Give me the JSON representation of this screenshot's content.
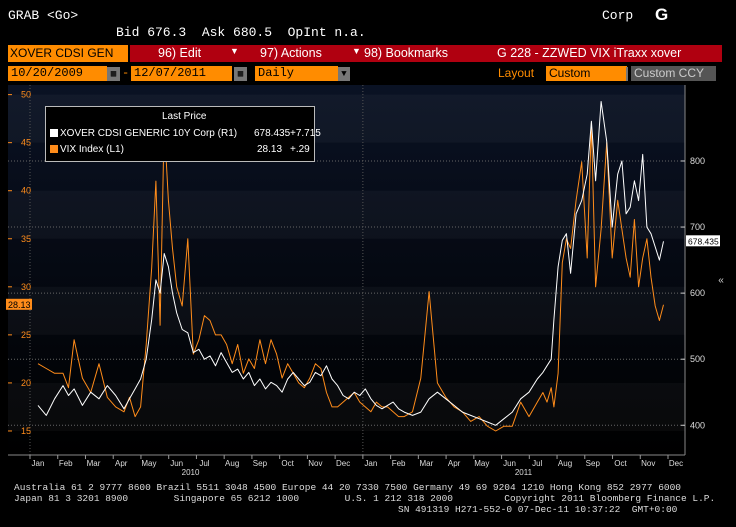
{
  "header": {
    "command": "GRAB <Go>",
    "sector": "Corp",
    "logo": "G",
    "quote": "Bid 676.3  Ask 680.5  OpInt n.a."
  },
  "menu": {
    "security_label": "XOVER CDSI GEN",
    "edit": "96) Edit",
    "actions": "97) Actions",
    "bookmarks": "98) Bookmarks",
    "graph_title": "G 228 - ZZWED VIX iTraxx xover"
  },
  "controls": {
    "start_date": "10/20/2009",
    "end_date": "12/07/2011",
    "period": "Daily",
    "layout_label": "Layout",
    "layout_value": "Custom",
    "currency": "Custom CCY"
  },
  "legend": {
    "title": "Last Price",
    "rows": [
      {
        "name": "XOVER CDSI GENERIC 10Y Corp  (R1)",
        "last": "678.435",
        "chg": "+7.715",
        "color": "#ffffff"
      },
      {
        "name": "VIX Index  (L1)",
        "last": "28.13",
        "chg": "+.29",
        "color": "#ff8c1a"
      }
    ]
  },
  "chart_data": {
    "type": "line",
    "x_ticks": [
      "Jan",
      "Feb",
      "Mar",
      "Apr",
      "May",
      "Jun",
      "Jul",
      "Aug",
      "Sep",
      "Oct",
      "Nov",
      "Dec",
      "Jan",
      "Feb",
      "Mar",
      "Apr",
      "May",
      "Jun",
      "Jul",
      "Aug",
      "Sep",
      "Oct",
      "Nov",
      "Dec"
    ],
    "year_labels": [
      "2010",
      "2011"
    ],
    "left_axis": {
      "ticks": [
        15,
        20,
        25,
        30,
        35,
        40,
        45,
        50
      ],
      "ylim": [
        12.5,
        51
      ],
      "last_label": "28.13"
    },
    "right_axis": {
      "ticks": [
        400,
        500,
        600,
        700,
        800
      ],
      "ylim": [
        355,
        915
      ],
      "last_label": "678.435"
    },
    "grid": true,
    "series": [
      {
        "name": "VIX Index (L1)",
        "axis": "left",
        "color": "#ff8c1a",
        "x": [
          0,
          0.3,
          0.6,
          0.9,
          1.1,
          1.3,
          1.6,
          1.9,
          2.2,
          2.5,
          2.8,
          3.1,
          3.3,
          3.5,
          3.7,
          3.9,
          4.1,
          4.25,
          4.4,
          4.55,
          4.7,
          4.85,
          5.0,
          5.2,
          5.4,
          5.6,
          5.8,
          6.0,
          6.2,
          6.4,
          6.6,
          6.8,
          7.0,
          7.2,
          7.4,
          7.6,
          7.8,
          8.0,
          8.2,
          8.4,
          8.6,
          8.8,
          9.0,
          9.2,
          9.4,
          9.6,
          9.8,
          10.0,
          10.2,
          10.4,
          10.6,
          10.8,
          11.0,
          11.2,
          11.4,
          11.6,
          11.8,
          12.0,
          12.2,
          12.4,
          12.6,
          12.8,
          13.0,
          13.2,
          13.5,
          13.8,
          14.1,
          14.4,
          14.7,
          15.0,
          15.3,
          15.6,
          15.9,
          16.2,
          16.5,
          16.8,
          17.1,
          17.4,
          17.7,
          18.0,
          18.2,
          18.35,
          18.5,
          18.6,
          18.75,
          18.9,
          19.05,
          19.2,
          19.4,
          19.6,
          19.8,
          19.95,
          20.1,
          20.3,
          20.5,
          20.7,
          20.9,
          21.05,
          21.2,
          21.35,
          21.5,
          21.65,
          21.8,
          21.95,
          22.1,
          22.25,
          22.4,
          22.55
        ],
        "y": [
          22,
          21.5,
          21,
          21,
          19.5,
          24.5,
          20.5,
          19,
          22,
          18.5,
          17.5,
          17,
          18.5,
          16.5,
          17.5,
          24,
          32,
          41,
          26,
          47,
          39,
          34,
          30,
          28,
          35,
          23,
          24.5,
          27,
          26.5,
          25,
          25,
          24,
          22,
          24,
          21,
          22.5,
          21.5,
          24.5,
          22,
          24.5,
          23,
          20.5,
          22,
          21,
          20,
          19.5,
          20.5,
          22,
          21.5,
          19,
          17.5,
          17.5,
          18,
          18.5,
          19,
          18,
          17.5,
          17,
          18,
          17.5,
          17.5,
          17,
          16.5,
          16.5,
          17,
          20.5,
          29.5,
          20,
          18.5,
          17.5,
          17,
          16,
          16.5,
          15.5,
          15,
          15.5,
          15.5,
          18,
          16.5,
          18,
          19,
          18,
          19.5,
          17.5,
          21,
          32.5,
          35,
          34,
          39,
          43,
          33,
          47,
          30,
          36,
          45,
          33,
          39,
          36,
          33,
          31,
          37,
          30,
          33,
          35,
          31,
          28,
          26.5,
          28.13
        ]
      },
      {
        "name": "XOVER CDSI GENERIC 10Y Corp (R1)",
        "axis": "right",
        "color": "#ffffff",
        "x": [
          0,
          0.3,
          0.6,
          0.9,
          1.1,
          1.3,
          1.6,
          1.9,
          2.2,
          2.5,
          2.8,
          3.1,
          3.3,
          3.5,
          3.7,
          3.9,
          4.1,
          4.25,
          4.4,
          4.55,
          4.7,
          4.85,
          5.0,
          5.2,
          5.4,
          5.6,
          5.8,
          6.0,
          6.2,
          6.4,
          6.6,
          6.8,
          7.0,
          7.2,
          7.4,
          7.6,
          7.8,
          8.0,
          8.2,
          8.4,
          8.6,
          8.8,
          9.0,
          9.2,
          9.4,
          9.6,
          9.8,
          10.0,
          10.2,
          10.4,
          10.6,
          10.8,
          11.0,
          11.2,
          11.4,
          11.6,
          11.8,
          12.0,
          12.2,
          12.4,
          12.6,
          12.8,
          13.0,
          13.2,
          13.5,
          13.8,
          14.1,
          14.4,
          14.7,
          15.0,
          15.3,
          15.6,
          15.9,
          16.2,
          16.5,
          16.8,
          17.1,
          17.4,
          17.7,
          18.0,
          18.2,
          18.35,
          18.5,
          18.6,
          18.75,
          18.9,
          19.05,
          19.2,
          19.4,
          19.6,
          19.8,
          19.95,
          20.1,
          20.3,
          20.5,
          20.7,
          20.9,
          21.05,
          21.2,
          21.35,
          21.5,
          21.65,
          21.8,
          21.95,
          22.1,
          22.25,
          22.4,
          22.55
        ],
        "y": [
          430,
          415,
          440,
          460,
          445,
          455,
          430,
          450,
          440,
          460,
          445,
          425,
          440,
          455,
          470,
          500,
          560,
          620,
          600,
          660,
          640,
          600,
          570,
          545,
          540,
          510,
          515,
          500,
          505,
          490,
          510,
          495,
          480,
          485,
          470,
          480,
          460,
          470,
          455,
          465,
          460,
          450,
          470,
          480,
          470,
          460,
          465,
          480,
          475,
          490,
          470,
          460,
          445,
          440,
          450,
          445,
          455,
          440,
          430,
          425,
          430,
          435,
          425,
          420,
          415,
          420,
          440,
          450,
          440,
          430,
          420,
          415,
          410,
          405,
          400,
          410,
          420,
          440,
          450,
          470,
          480,
          490,
          500,
          560,
          640,
          680,
          690,
          630,
          720,
          740,
          780,
          860,
          770,
          890,
          830,
          700,
          780,
          800,
          720,
          730,
          770,
          740,
          810,
          700,
          690,
          670,
          650,
          678.435
        ]
      }
    ]
  },
  "footer": {
    "line1": "Australia 61 2 9777 8600 Brazil 5511 3048 4500 Europe 44 20 7330 7500 Germany 49 69 9204 1210 Hong Kong 852 2977 6000",
    "line2": "Japan 81 3 3201 8900        Singapore 65 6212 1000        U.S. 1 212 318 2000         Copyright 2011 Bloomberg Finance L.P.",
    "line3": "SN 491319 H271-552-0 07-Dec-11 10:37:22  GMT+0:00"
  }
}
